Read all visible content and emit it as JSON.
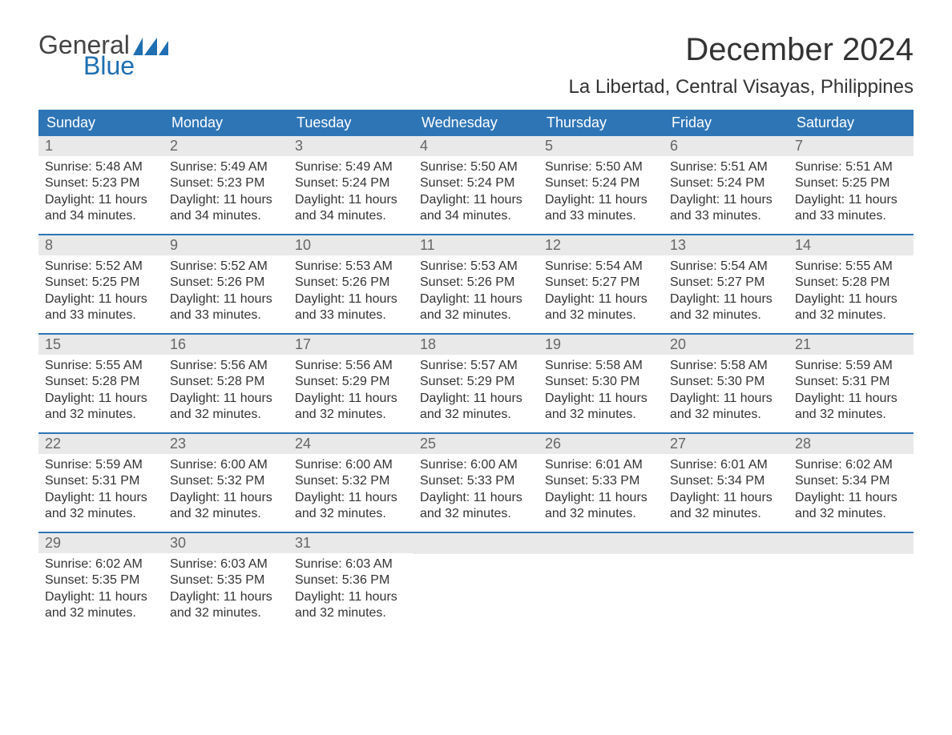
{
  "logo": {
    "text_general": "General",
    "text_blue": "Blue",
    "flag_color": "#1f6fb2"
  },
  "title": "December 2024",
  "location": "La Libertad, Central Visayas, Philippines",
  "colors": {
    "header_bg": "#2e75b6",
    "header_text": "#ffffff",
    "daynum_bg": "#e9e9e9",
    "daynum_text": "#666666",
    "body_text": "#333333",
    "week_border": "#2e75b6",
    "background": "#ffffff"
  },
  "typography": {
    "title_fontsize": 40,
    "location_fontsize": 24,
    "dayheader_fontsize": 18,
    "daynum_fontsize": 18,
    "cell_fontsize": 16
  },
  "day_names": [
    "Sunday",
    "Monday",
    "Tuesday",
    "Wednesday",
    "Thursday",
    "Friday",
    "Saturday"
  ],
  "days": [
    {
      "num": "1",
      "sunrise": "5:48 AM",
      "sunset": "5:23 PM",
      "daylight": "11 hours and 34 minutes."
    },
    {
      "num": "2",
      "sunrise": "5:49 AM",
      "sunset": "5:23 PM",
      "daylight": "11 hours and 34 minutes."
    },
    {
      "num": "3",
      "sunrise": "5:49 AM",
      "sunset": "5:24 PM",
      "daylight": "11 hours and 34 minutes."
    },
    {
      "num": "4",
      "sunrise": "5:50 AM",
      "sunset": "5:24 PM",
      "daylight": "11 hours and 34 minutes."
    },
    {
      "num": "5",
      "sunrise": "5:50 AM",
      "sunset": "5:24 PM",
      "daylight": "11 hours and 33 minutes."
    },
    {
      "num": "6",
      "sunrise": "5:51 AM",
      "sunset": "5:24 PM",
      "daylight": "11 hours and 33 minutes."
    },
    {
      "num": "7",
      "sunrise": "5:51 AM",
      "sunset": "5:25 PM",
      "daylight": "11 hours and 33 minutes."
    },
    {
      "num": "8",
      "sunrise": "5:52 AM",
      "sunset": "5:25 PM",
      "daylight": "11 hours and 33 minutes."
    },
    {
      "num": "9",
      "sunrise": "5:52 AM",
      "sunset": "5:26 PM",
      "daylight": "11 hours and 33 minutes."
    },
    {
      "num": "10",
      "sunrise": "5:53 AM",
      "sunset": "5:26 PM",
      "daylight": "11 hours and 33 minutes."
    },
    {
      "num": "11",
      "sunrise": "5:53 AM",
      "sunset": "5:26 PM",
      "daylight": "11 hours and 32 minutes."
    },
    {
      "num": "12",
      "sunrise": "5:54 AM",
      "sunset": "5:27 PM",
      "daylight": "11 hours and 32 minutes."
    },
    {
      "num": "13",
      "sunrise": "5:54 AM",
      "sunset": "5:27 PM",
      "daylight": "11 hours and 32 minutes."
    },
    {
      "num": "14",
      "sunrise": "5:55 AM",
      "sunset": "5:28 PM",
      "daylight": "11 hours and 32 minutes."
    },
    {
      "num": "15",
      "sunrise": "5:55 AM",
      "sunset": "5:28 PM",
      "daylight": "11 hours and 32 minutes."
    },
    {
      "num": "16",
      "sunrise": "5:56 AM",
      "sunset": "5:28 PM",
      "daylight": "11 hours and 32 minutes."
    },
    {
      "num": "17",
      "sunrise": "5:56 AM",
      "sunset": "5:29 PM",
      "daylight": "11 hours and 32 minutes."
    },
    {
      "num": "18",
      "sunrise": "5:57 AM",
      "sunset": "5:29 PM",
      "daylight": "11 hours and 32 minutes."
    },
    {
      "num": "19",
      "sunrise": "5:58 AM",
      "sunset": "5:30 PM",
      "daylight": "11 hours and 32 minutes."
    },
    {
      "num": "20",
      "sunrise": "5:58 AM",
      "sunset": "5:30 PM",
      "daylight": "11 hours and 32 minutes."
    },
    {
      "num": "21",
      "sunrise": "5:59 AM",
      "sunset": "5:31 PM",
      "daylight": "11 hours and 32 minutes."
    },
    {
      "num": "22",
      "sunrise": "5:59 AM",
      "sunset": "5:31 PM",
      "daylight": "11 hours and 32 minutes."
    },
    {
      "num": "23",
      "sunrise": "6:00 AM",
      "sunset": "5:32 PM",
      "daylight": "11 hours and 32 minutes."
    },
    {
      "num": "24",
      "sunrise": "6:00 AM",
      "sunset": "5:32 PM",
      "daylight": "11 hours and 32 minutes."
    },
    {
      "num": "25",
      "sunrise": "6:00 AM",
      "sunset": "5:33 PM",
      "daylight": "11 hours and 32 minutes."
    },
    {
      "num": "26",
      "sunrise": "6:01 AM",
      "sunset": "5:33 PM",
      "daylight": "11 hours and 32 minutes."
    },
    {
      "num": "27",
      "sunrise": "6:01 AM",
      "sunset": "5:34 PM",
      "daylight": "11 hours and 32 minutes."
    },
    {
      "num": "28",
      "sunrise": "6:02 AM",
      "sunset": "5:34 PM",
      "daylight": "11 hours and 32 minutes."
    },
    {
      "num": "29",
      "sunrise": "6:02 AM",
      "sunset": "5:35 PM",
      "daylight": "11 hours and 32 minutes."
    },
    {
      "num": "30",
      "sunrise": "6:03 AM",
      "sunset": "5:35 PM",
      "daylight": "11 hours and 32 minutes."
    },
    {
      "num": "31",
      "sunrise": "6:03 AM",
      "sunset": "5:36 PM",
      "daylight": "11 hours and 32 minutes."
    }
  ],
  "labels": {
    "sunrise_prefix": "Sunrise: ",
    "sunset_prefix": "Sunset: ",
    "daylight_prefix": "Daylight: "
  },
  "layout": {
    "columns": 7,
    "first_day_column": 0,
    "total_cells": 35
  }
}
